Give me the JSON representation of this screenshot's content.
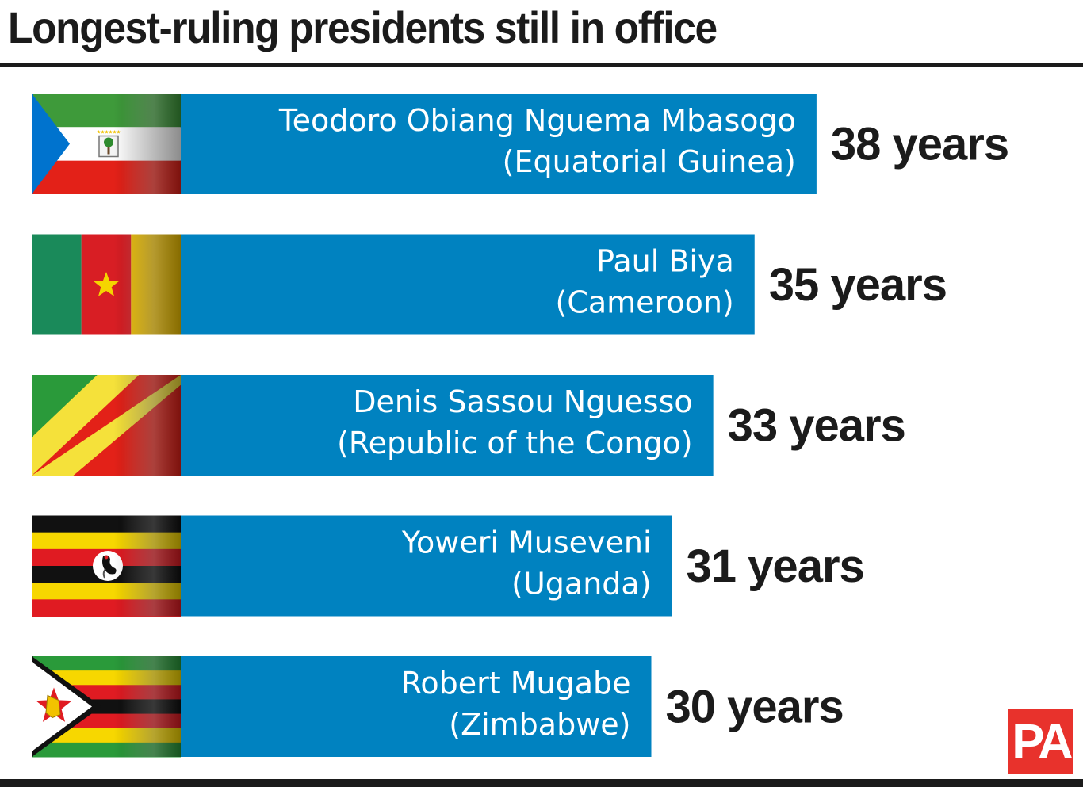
{
  "title": "Longest-ruling presidents still in office",
  "chart_data": {
    "type": "bar",
    "orientation": "horizontal",
    "title": "Longest-ruling presidents still in office",
    "categories": [
      [
        "Teodoro Obiang Nguema Mbasogo",
        "(Equatorial Guinea)"
      ],
      [
        "Paul Biya",
        "(Cameroon)"
      ],
      [
        "Denis Sassou Nguesso",
        "(Republic of the Congo)"
      ],
      [
        "Yoweri Museveni",
        "(Uganda)"
      ],
      [
        "Robert Mugabe",
        "(Zimbabwe)"
      ]
    ],
    "values": [
      38,
      35,
      33,
      31,
      30
    ],
    "value_labels": [
      "38 years",
      "35 years",
      "33 years",
      "31 years",
      "30 years"
    ],
    "flags": [
      "equatorial-guinea-flag",
      "cameroon-flag",
      "congo-flag",
      "uganda-flag",
      "zimbabwe-flag"
    ],
    "bar_color": "#0082c0",
    "grid": false,
    "legend": "none"
  },
  "logo": {
    "text": "PA",
    "color": "#e8322c"
  }
}
